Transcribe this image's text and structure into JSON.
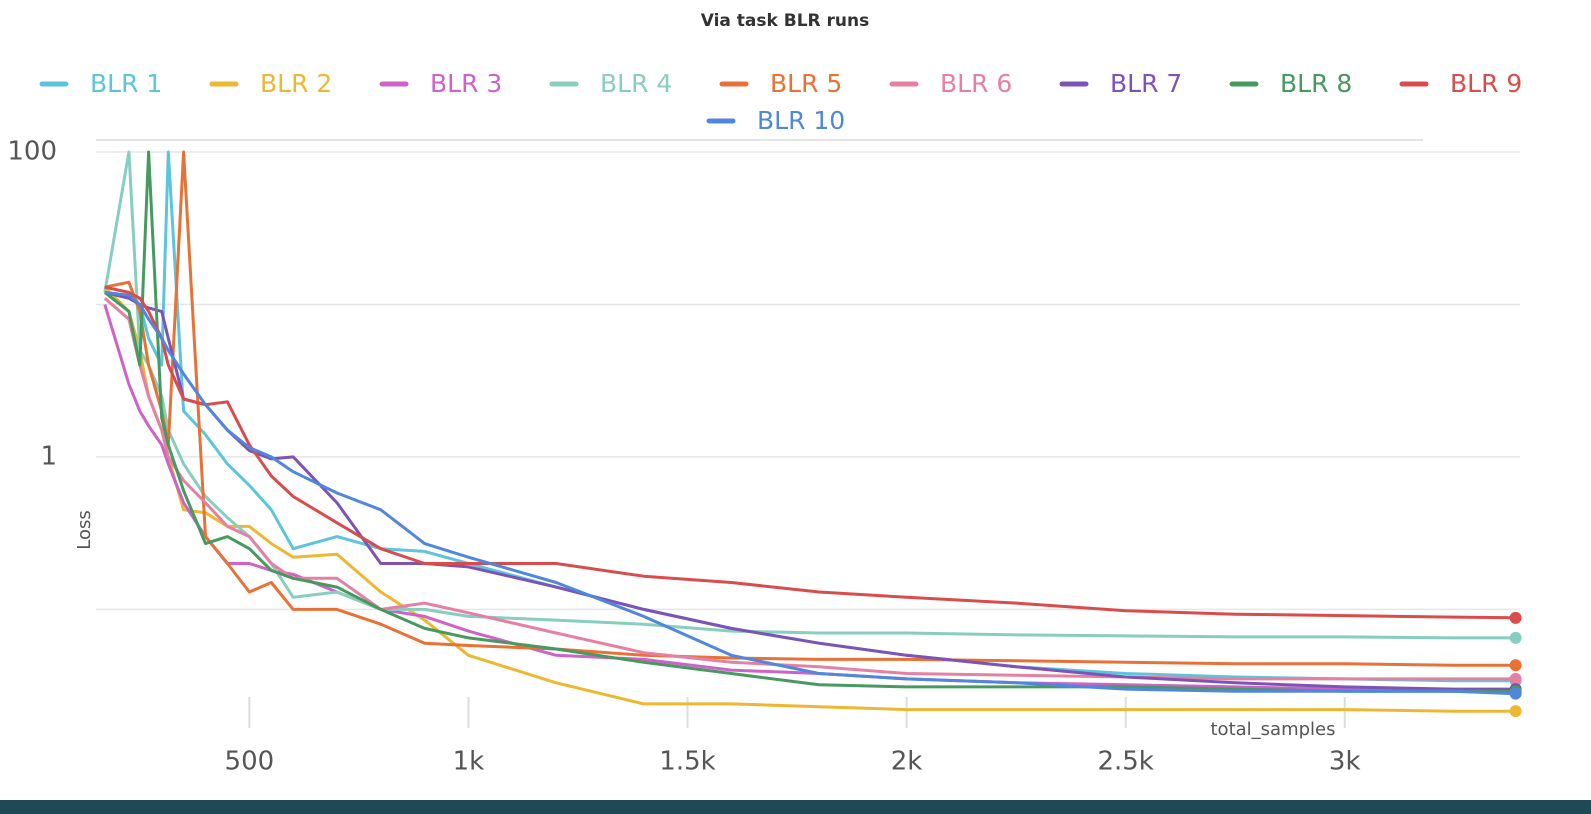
{
  "chart_data": {
    "type": "line",
    "title": "Via task BLR runs",
    "x_label": "total_samples",
    "y_label": "Loss",
    "ylog": true,
    "grid": true,
    "xlim": [
      150,
      3400
    ],
    "ylim": [
      0.015,
      100
    ],
    "xticks": [
      500,
      {
        "value": 1000,
        "label": "1k"
      },
      {
        "value": 1500,
        "label": "1.5k"
      },
      {
        "value": 2000,
        "label": "2k"
      },
      {
        "value": 2500,
        "label": "2.5k"
      },
      {
        "value": 3000,
        "label": "3k"
      }
    ],
    "yticks": [
      100,
      {
        "value": 10,
        "label": null
      },
      1,
      {
        "value": 0.1,
        "label": null
      }
    ],
    "x": [
      170,
      225,
      250,
      270,
      300,
      315,
      350,
      400,
      450,
      500,
      550,
      600,
      700,
      800,
      900,
      1000,
      1200,
      1400,
      1600,
      1800,
      2000,
      2250,
      2500,
      2750,
      3000,
      3250,
      3390
    ],
    "series": [
      {
        "name": "BLR 1",
        "color": "#5bc5db",
        "values": [
          12,
          11,
          10,
          6,
          4,
          100,
          2.0,
          1.4,
          0.9,
          0.65,
          0.45,
          0.25,
          0.3,
          0.25,
          0.24,
          0.2,
          0.14,
          0.1,
          0.075,
          0.06,
          0.05,
          0.042,
          0.038,
          0.036,
          0.035,
          0.034,
          0.034
        ]
      },
      {
        "name": "BLR 2",
        "color": "#edb732",
        "values": [
          13,
          9,
          5,
          2.5,
          1.5,
          1.0,
          0.45,
          0.43,
          0.35,
          0.35,
          0.27,
          0.22,
          0.23,
          0.13,
          0.085,
          0.05,
          0.033,
          0.024,
          0.024,
          0.023,
          0.022,
          0.022,
          0.022,
          0.022,
          0.022,
          0.0215,
          0.0215
        ]
      },
      {
        "name": "BLR 3",
        "color": "#cd62c9",
        "values": [
          10,
          3,
          2.0,
          1.6,
          1.2,
          0.9,
          0.5,
          0.3,
          0.2,
          0.2,
          0.18,
          0.17,
          0.13,
          0.1,
          0.09,
          0.072,
          0.05,
          0.047,
          0.04,
          0.038,
          0.035,
          0.033,
          0.032,
          0.031,
          0.03,
          0.029,
          0.029
        ]
      },
      {
        "name": "BLR 4",
        "color": "#87cebf",
        "values": [
          12,
          100,
          5,
          4,
          2.5,
          1.5,
          0.9,
          0.55,
          0.4,
          0.3,
          0.2,
          0.12,
          0.13,
          0.1,
          0.1,
          0.09,
          0.085,
          0.08,
          0.072,
          0.07,
          0.07,
          0.068,
          0.067,
          0.066,
          0.066,
          0.065,
          0.065
        ]
      },
      {
        "name": "BLR 5",
        "color": "#e87136",
        "values": [
          13,
          14,
          9,
          4,
          2,
          1.2,
          100,
          0.3,
          0.2,
          0.13,
          0.15,
          0.1,
          0.1,
          0.08,
          0.06,
          0.058,
          0.055,
          0.05,
          0.048,
          0.047,
          0.047,
          0.046,
          0.045,
          0.044,
          0.044,
          0.043,
          0.043
        ]
      },
      {
        "name": "BLR 6",
        "color": "#e680a2",
        "values": [
          11,
          8,
          4,
          2.5,
          1.5,
          1.0,
          0.7,
          0.5,
          0.35,
          0.3,
          0.2,
          0.16,
          0.16,
          0.1,
          0.11,
          0.095,
          0.07,
          0.052,
          0.045,
          0.042,
          0.038,
          0.037,
          0.036,
          0.035,
          0.035,
          0.035,
          0.035
        ]
      },
      {
        "name": "BLR 7",
        "color": "#7d53b5",
        "values": [
          12,
          11,
          10,
          9.5,
          9,
          6,
          2.4,
          2.2,
          1.5,
          1.1,
          0.97,
          1.0,
          0.5,
          0.2,
          0.2,
          0.19,
          0.14,
          0.1,
          0.075,
          0.06,
          0.05,
          0.042,
          0.036,
          0.033,
          0.031,
          0.03,
          0.03
        ]
      },
      {
        "name": "BLR 8",
        "color": "#479a5f",
        "values": [
          12,
          9,
          4,
          100,
          1.8,
          1.2,
          0.6,
          0.27,
          0.3,
          0.25,
          0.18,
          0.16,
          0.14,
          0.1,
          0.075,
          0.065,
          0.055,
          0.045,
          0.038,
          0.032,
          0.031,
          0.031,
          0.031,
          0.03,
          0.029,
          0.029,
          0.029
        ]
      },
      {
        "name": "BLR 9",
        "color": "#da4c4c",
        "values": [
          13,
          12,
          11,
          9,
          6,
          4,
          2.4,
          2.2,
          2.3,
          1.2,
          0.75,
          0.55,
          0.37,
          0.25,
          0.2,
          0.2,
          0.2,
          0.165,
          0.15,
          0.13,
          0.12,
          0.11,
          0.098,
          0.093,
          0.091,
          0.089,
          0.088
        ]
      },
      {
        "name": "BLR 10",
        "color": "#5087dd",
        "values": [
          12,
          11.5,
          10,
          8,
          6,
          5,
          3.5,
          2.2,
          1.5,
          1.15,
          1.0,
          0.8,
          0.58,
          0.45,
          0.27,
          0.22,
          0.15,
          0.09,
          0.05,
          0.038,
          0.035,
          0.033,
          0.03,
          0.029,
          0.029,
          0.029,
          0.028
        ]
      }
    ]
  }
}
